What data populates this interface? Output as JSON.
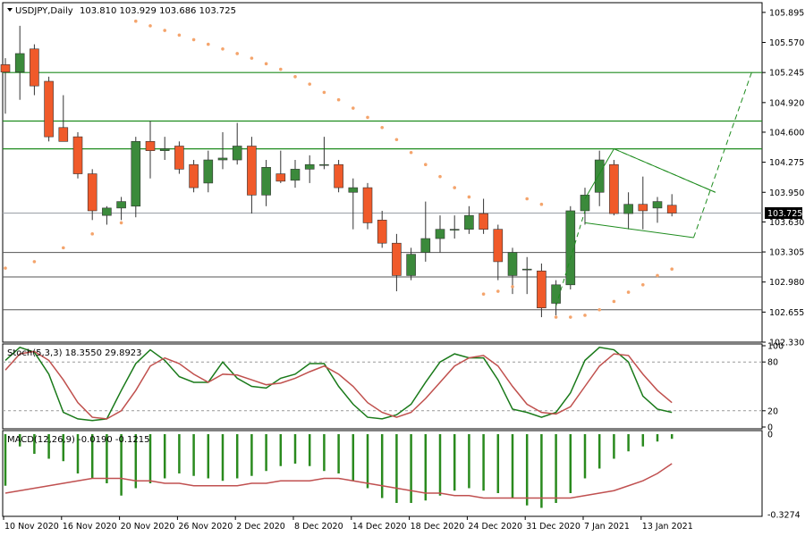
{
  "header": {
    "symbol": "USDJPY,Daily",
    "ohlc": "103.810 103.929 103.686 103.725"
  },
  "price_tag": "103.725",
  "chart_data": [
    {
      "type": "candlestick",
      "title": "USDJPY,Daily",
      "ylim": [
        102.33,
        106.0
      ],
      "price_ticks": [
        "105.895",
        "105.570",
        "105.245",
        "104.920",
        "104.600",
        "104.275",
        "103.950",
        "103.630",
        "103.305",
        "102.980",
        "102.655",
        "102.330"
      ],
      "date_ticks": [
        {
          "label": "10 Nov 2020",
          "i": 0
        },
        {
          "label": "16 Nov 2020",
          "i": 4
        },
        {
          "label": "20 Nov 2020",
          "i": 8
        },
        {
          "label": "26 Nov 2020",
          "i": 12
        },
        {
          "label": "2 Dec 2020",
          "i": 16
        },
        {
          "label": "8 Dec 2020",
          "i": 20
        },
        {
          "label": "14 Dec 2020",
          "i": 24
        },
        {
          "label": "18 Dec 2020",
          "i": 28
        },
        {
          "label": "24 Dec 2020",
          "i": 32
        },
        {
          "label": "31 Dec 2020",
          "i": 36
        },
        {
          "label": "7 Jan 2021",
          "i": 40
        },
        {
          "label": "13 Jan 2021",
          "i": 44
        }
      ],
      "candles": [
        [
          105.33,
          105.4,
          104.8,
          105.25
        ],
        [
          105.25,
          105.75,
          104.95,
          105.45
        ],
        [
          105.5,
          105.55,
          105.0,
          105.1
        ],
        [
          105.15,
          105.2,
          104.5,
          104.55
        ],
        [
          104.65,
          105.0,
          104.5,
          104.5
        ],
        [
          104.55,
          104.6,
          104.1,
          104.15
        ],
        [
          104.15,
          104.2,
          103.65,
          103.75
        ],
        [
          103.7,
          103.8,
          103.6,
          103.78
        ],
        [
          103.78,
          103.9,
          103.65,
          103.85
        ],
        [
          103.8,
          104.55,
          103.68,
          104.5
        ],
        [
          104.5,
          104.72,
          104.1,
          104.4
        ],
        [
          104.4,
          104.55,
          104.3,
          104.42
        ],
        [
          104.45,
          104.5,
          104.15,
          104.2
        ],
        [
          104.25,
          104.3,
          103.95,
          104.0
        ],
        [
          104.05,
          104.4,
          103.95,
          104.3
        ],
        [
          104.3,
          104.6,
          104.2,
          104.32
        ],
        [
          104.3,
          104.7,
          104.25,
          104.45
        ],
        [
          104.45,
          104.55,
          103.72,
          103.92
        ],
        [
          103.92,
          104.3,
          103.8,
          104.22
        ],
        [
          104.15,
          104.4,
          104.05,
          104.07
        ],
        [
          104.08,
          104.3,
          104.0,
          104.2
        ],
        [
          104.2,
          104.35,
          104.05,
          104.25
        ],
        [
          104.25,
          104.55,
          104.2,
          104.25
        ],
        [
          104.25,
          104.3,
          103.95,
          104.0
        ],
        [
          103.95,
          104.1,
          103.55,
          104.0
        ],
        [
          104.0,
          104.05,
          103.55,
          103.62
        ],
        [
          103.65,
          103.75,
          103.35,
          103.4
        ],
        [
          103.4,
          103.5,
          102.88,
          103.05
        ],
        [
          103.05,
          103.35,
          103.0,
          103.28
        ],
        [
          103.3,
          103.85,
          103.2,
          103.45
        ],
        [
          103.45,
          103.7,
          103.3,
          103.55
        ],
        [
          103.55,
          103.7,
          103.45,
          103.55
        ],
        [
          103.55,
          103.8,
          103.5,
          103.7
        ],
        [
          103.72,
          103.88,
          103.5,
          103.55
        ],
        [
          103.55,
          103.6,
          103.0,
          103.2
        ],
        [
          103.05,
          103.35,
          102.85,
          103.3
        ],
        [
          103.12,
          103.25,
          102.85,
          103.12
        ],
        [
          103.1,
          103.18,
          102.6,
          102.7
        ],
        [
          102.75,
          103.0,
          102.62,
          102.95
        ],
        [
          102.95,
          103.8,
          102.9,
          103.75
        ],
        [
          103.75,
          104.0,
          103.6,
          103.92
        ],
        [
          103.95,
          104.4,
          103.8,
          104.3
        ],
        [
          104.25,
          104.3,
          103.7,
          103.72
        ],
        [
          103.72,
          103.95,
          103.55,
          103.82
        ],
        [
          103.82,
          104.12,
          103.55,
          103.75
        ],
        [
          103.78,
          103.9,
          103.62,
          103.85
        ],
        [
          103.81,
          103.93,
          103.69,
          103.725
        ]
      ],
      "parabolic_sar": [
        {
          "i": 0,
          "v": 103.13
        },
        {
          "i": 2,
          "v": 103.2
        },
        {
          "i": 4,
          "v": 103.35
        },
        {
          "i": 6,
          "v": 103.5
        },
        {
          "i": 8,
          "v": 103.62
        },
        {
          "i": 9,
          "v": 105.8
        },
        {
          "i": 10,
          "v": 105.75
        },
        {
          "i": 11,
          "v": 105.7
        },
        {
          "i": 12,
          "v": 105.65
        },
        {
          "i": 13,
          "v": 105.6
        },
        {
          "i": 14,
          "v": 105.55
        },
        {
          "i": 15,
          "v": 105.5
        },
        {
          "i": 16,
          "v": 105.45
        },
        {
          "i": 17,
          "v": 105.4
        },
        {
          "i": 18,
          "v": 105.34
        },
        {
          "i": 19,
          "v": 105.28
        },
        {
          "i": 20,
          "v": 105.2
        },
        {
          "i": 21,
          "v": 105.12
        },
        {
          "i": 22,
          "v": 105.03
        },
        {
          "i": 23,
          "v": 104.95
        },
        {
          "i": 24,
          "v": 104.86
        },
        {
          "i": 25,
          "v": 104.76
        },
        {
          "i": 26,
          "v": 104.65
        },
        {
          "i": 27,
          "v": 104.52
        },
        {
          "i": 28,
          "v": 104.38
        },
        {
          "i": 29,
          "v": 104.25
        },
        {
          "i": 30,
          "v": 104.12
        },
        {
          "i": 31,
          "v": 104.0
        },
        {
          "i": 32,
          "v": 103.9
        },
        {
          "i": 33,
          "v": 102.85
        },
        {
          "i": 34,
          "v": 102.88
        },
        {
          "i": 35,
          "v": 102.93
        },
        {
          "i": 36,
          "v": 103.88
        },
        {
          "i": 37,
          "v": 103.82
        },
        {
          "i": 38,
          "v": 102.6
        },
        {
          "i": 39,
          "v": 102.6
        },
        {
          "i": 40,
          "v": 102.62
        },
        {
          "i": 41,
          "v": 102.68
        },
        {
          "i": 42,
          "v": 102.77
        },
        {
          "i": 43,
          "v": 102.87
        },
        {
          "i": 44,
          "v": 102.95
        },
        {
          "i": 45,
          "v": 103.05
        },
        {
          "i": 46,
          "v": 103.12
        }
      ],
      "levels_green": [
        105.245,
        104.72,
        104.42
      ],
      "levels_gray": [
        103.725,
        103.3,
        103.035,
        102.68
      ]
    },
    {
      "type": "line",
      "title": "Stoch(5,3,3) 18.3550 29.8923",
      "ylim": [
        0,
        100
      ],
      "ticks": [
        "100",
        "80",
        "20",
        "0"
      ],
      "levels": [
        80,
        20
      ],
      "series": [
        {
          "name": "main",
          "color": "#1a7a1a",
          "values": [
            82,
            98,
            92,
            65,
            18,
            10,
            8,
            10,
            45,
            78,
            95,
            82,
            62,
            55,
            55,
            80,
            60,
            50,
            48,
            60,
            65,
            78,
            78,
            50,
            28,
            12,
            10,
            15,
            28,
            55,
            80,
            90,
            85,
            85,
            58,
            22,
            18,
            12,
            18,
            42,
            82,
            98,
            95,
            80,
            38,
            22,
            18
          ]
        },
        {
          "name": "signal",
          "color": "#c0504d",
          "values": [
            70,
            90,
            93,
            82,
            58,
            30,
            12,
            10,
            20,
            45,
            75,
            85,
            78,
            65,
            55,
            65,
            64,
            58,
            52,
            54,
            60,
            68,
            75,
            65,
            50,
            30,
            18,
            12,
            18,
            35,
            55,
            75,
            85,
            88,
            75,
            50,
            28,
            18,
            16,
            25,
            50,
            75,
            90,
            88,
            65,
            45,
            30
          ]
        }
      ]
    },
    {
      "type": "bar",
      "title": "MACD(12,26,9) -0.0190 -0.1215",
      "ylim": [
        -0.3274,
        0
      ],
      "ticks": [
        "0",
        "-0.3274"
      ],
      "histogram": [
        -0.21,
        -0.05,
        -0.08,
        -0.1,
        -0.11,
        -0.16,
        -0.18,
        -0.2,
        -0.25,
        -0.22,
        -0.2,
        -0.18,
        -0.16,
        -0.17,
        -0.18,
        -0.19,
        -0.18,
        -0.17,
        -0.15,
        -0.13,
        -0.12,
        -0.13,
        -0.15,
        -0.16,
        -0.19,
        -0.22,
        -0.26,
        -0.28,
        -0.28,
        -0.27,
        -0.25,
        -0.23,
        -0.22,
        -0.23,
        -0.24,
        -0.26,
        -0.29,
        -0.3,
        -0.28,
        -0.24,
        -0.18,
        -0.14,
        -0.1,
        -0.07,
        -0.05,
        -0.03,
        -0.019
      ],
      "signal": [
        -0.24,
        -0.23,
        -0.22,
        -0.21,
        -0.2,
        -0.19,
        -0.18,
        -0.18,
        -0.18,
        -0.19,
        -0.19,
        -0.2,
        -0.2,
        -0.21,
        -0.21,
        -0.21,
        -0.21,
        -0.2,
        -0.2,
        -0.19,
        -0.19,
        -0.19,
        -0.18,
        -0.18,
        -0.19,
        -0.2,
        -0.21,
        -0.22,
        -0.23,
        -0.24,
        -0.24,
        -0.25,
        -0.25,
        -0.26,
        -0.26,
        -0.26,
        -0.26,
        -0.26,
        -0.26,
        -0.26,
        -0.25,
        -0.24,
        -0.23,
        -0.21,
        -0.19,
        -0.16,
        -0.12
      ]
    }
  ],
  "colors": {
    "bull": "#3b8a3b",
    "bear": "#f05a2a",
    "green_line": "#1e8c1e",
    "gray_line": "#555555",
    "sar": "#f4a46c",
    "stoch_main": "#1a7a1a",
    "stoch_signal": "#c0504d",
    "macd_hist": "#2a8a1e",
    "macd_signal": "#c05050"
  }
}
